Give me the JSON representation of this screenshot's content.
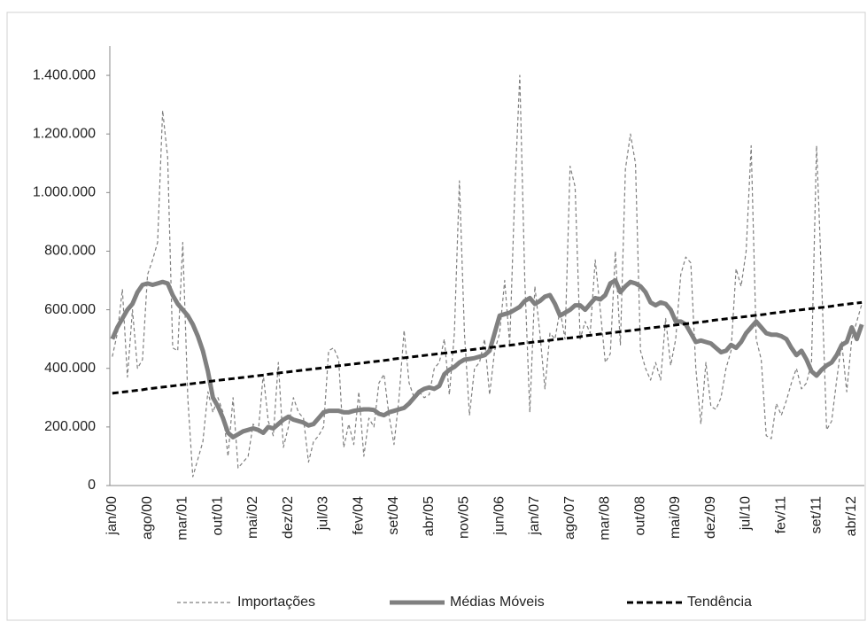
{
  "chart_data": {
    "type": "line",
    "categories": [
      "jan/00",
      null,
      null,
      null,
      null,
      null,
      null,
      "ago/00",
      null,
      null,
      null,
      null,
      null,
      null,
      "mar/01",
      null,
      null,
      null,
      null,
      null,
      null,
      "out/01",
      null,
      null,
      null,
      null,
      null,
      null,
      "mai/02",
      null,
      null,
      null,
      null,
      null,
      null,
      "dez/02",
      null,
      null,
      null,
      null,
      null,
      null,
      "jul/03",
      null,
      null,
      null,
      null,
      null,
      null,
      "fev/04",
      null,
      null,
      null,
      null,
      null,
      null,
      "set/04",
      null,
      null,
      null,
      null,
      null,
      null,
      "abr/05",
      null,
      null,
      null,
      null,
      null,
      null,
      "nov/05",
      null,
      null,
      null,
      null,
      null,
      null,
      "jun/06",
      null,
      null,
      null,
      null,
      null,
      null,
      "jan/07",
      null,
      null,
      null,
      null,
      null,
      null,
      "ago/07",
      null,
      null,
      null,
      null,
      null,
      null,
      "mar/08",
      null,
      null,
      null,
      null,
      null,
      null,
      "out/08",
      null,
      null,
      null,
      null,
      null,
      null,
      "mai/09",
      null,
      null,
      null,
      null,
      null,
      null,
      "dez/09",
      null,
      null,
      null,
      null,
      null,
      null,
      "jul/10",
      null,
      null,
      null,
      null,
      null,
      null,
      "fev/11",
      null,
      null,
      null,
      null,
      null,
      null,
      "set/11",
      null,
      null,
      null,
      null,
      null,
      null,
      "abr/12",
      null,
      null
    ],
    "series": [
      {
        "name": "Importações",
        "color": "#7f7f7f",
        "line_style": "dashed",
        "line_width": 1.2,
        "values": [
          440000,
          520000,
          670000,
          370000,
          600000,
          400000,
          430000,
          720000,
          770000,
          830000,
          1280000,
          1120000,
          470000,
          460000,
          830000,
          300000,
          30000,
          90000,
          150000,
          320000,
          250000,
          300000,
          250000,
          100000,
          300000,
          60000,
          80000,
          100000,
          210000,
          180000,
          380000,
          220000,
          170000,
          420000,
          130000,
          200000,
          300000,
          250000,
          230000,
          80000,
          150000,
          170000,
          200000,
          460000,
          470000,
          430000,
          130000,
          210000,
          140000,
          320000,
          100000,
          230000,
          200000,
          350000,
          380000,
          240000,
          140000,
          300000,
          530000,
          350000,
          300000,
          320000,
          300000,
          310000,
          400000,
          420000,
          500000,
          310000,
          520000,
          1040000,
          520000,
          240000,
          400000,
          420000,
          500000,
          310000,
          460000,
          520000,
          700000,
          480000,
          1000000,
          1400000,
          700000,
          250000,
          680000,
          520000,
          330000,
          520000,
          500000,
          600000,
          500000,
          1090000,
          1020000,
          500000,
          560000,
          520000,
          770000,
          600000,
          420000,
          450000,
          800000,
          480000,
          1080000,
          1200000,
          1100000,
          460000,
          400000,
          360000,
          420000,
          360000,
          570000,
          410000,
          500000,
          720000,
          780000,
          760000,
          400000,
          210000,
          420000,
          270000,
          260000,
          300000,
          400000,
          460000,
          740000,
          680000,
          800000,
          1160000,
          500000,
          430000,
          170000,
          160000,
          280000,
          240000,
          290000,
          350000,
          400000,
          330000,
          350000,
          420000,
          1160000,
          700000,
          190000,
          220000,
          360000,
          490000,
          320000,
          500000,
          560000,
          620000
        ]
      },
      {
        "name": "Médias Móveis",
        "color": "#808080",
        "line_style": "solid",
        "line_width": 5,
        "values": [
          500000,
          540000,
          570000,
          600000,
          620000,
          660000,
          685000,
          690000,
          685000,
          690000,
          695000,
          690000,
          650000,
          620000,
          600000,
          580000,
          550000,
          510000,
          460000,
          390000,
          300000,
          270000,
          230000,
          180000,
          165000,
          175000,
          185000,
          190000,
          195000,
          190000,
          180000,
          200000,
          195000,
          210000,
          225000,
          235000,
          225000,
          220000,
          215000,
          205000,
          210000,
          230000,
          250000,
          255000,
          255000,
          255000,
          250000,
          250000,
          255000,
          258000,
          260000,
          260000,
          258000,
          245000,
          240000,
          250000,
          255000,
          260000,
          265000,
          280000,
          300000,
          320000,
          330000,
          335000,
          330000,
          340000,
          380000,
          395000,
          405000,
          420000,
          430000,
          432000,
          435000,
          440000,
          445000,
          460000,
          520000,
          580000,
          585000,
          590000,
          600000,
          610000,
          630000,
          640000,
          620000,
          630000,
          645000,
          650000,
          620000,
          580000,
          590000,
          600000,
          615000,
          615000,
          600000,
          620000,
          640000,
          635000,
          650000,
          690000,
          700000,
          660000,
          680000,
          695000,
          690000,
          680000,
          660000,
          625000,
          615000,
          625000,
          620000,
          600000,
          560000,
          560000,
          550000,
          520000,
          490000,
          495000,
          490000,
          485000,
          470000,
          455000,
          460000,
          480000,
          470000,
          490000,
          520000,
          540000,
          560000,
          540000,
          520000,
          515000,
          515000,
          510000,
          500000,
          470000,
          445000,
          460000,
          430000,
          390000,
          375000,
          395000,
          410000,
          420000,
          445000,
          480000,
          490000,
          540000,
          500000,
          550000
        ]
      },
      {
        "name": "Tendência",
        "color": "#000000",
        "line_style": "dashed",
        "line_width": 3,
        "values": [
          315000,
          317000,
          319000,
          321000,
          323000,
          325000,
          327000,
          330000,
          332000,
          334000,
          336000,
          338000,
          340000,
          342000,
          344000,
          346000,
          348000,
          350000,
          352000,
          355000,
          357000,
          359000,
          361000,
          363000,
          365000,
          367000,
          369000,
          371000,
          373000,
          375000,
          377000,
          380000,
          382000,
          384000,
          386000,
          388000,
          390000,
          392000,
          394000,
          396000,
          398000,
          400000,
          402000,
          404000,
          407000,
          409000,
          411000,
          413000,
          415000,
          417000,
          419000,
          421000,
          423000,
          425000,
          427000,
          429000,
          432000,
          434000,
          436000,
          438000,
          440000,
          442000,
          444000,
          446000,
          448000,
          450000,
          452000,
          454000,
          456000,
          459000,
          461000,
          463000,
          465000,
          467000,
          469000,
          471000,
          473000,
          475000,
          477000,
          479000,
          481000,
          484000,
          486000,
          488000,
          490000,
          492000,
          494000,
          496000,
          498000,
          500000,
          502000,
          504000,
          506000,
          508000,
          511000,
          513000,
          515000,
          517000,
          519000,
          521000,
          523000,
          525000,
          527000,
          529000,
          531000,
          533000,
          536000,
          538000,
          540000,
          542000,
          544000,
          546000,
          548000,
          550000,
          552000,
          554000,
          556000,
          558000,
          560000,
          563000,
          565000,
          567000,
          569000,
          571000,
          573000,
          575000,
          577000,
          579000,
          581000,
          583000,
          585000,
          588000,
          590000,
          592000,
          594000,
          596000,
          598000,
          600000,
          602000,
          604000,
          606000,
          608000,
          610000,
          612000,
          615000,
          617000,
          619000,
          621000,
          623000,
          625000
        ]
      }
    ],
    "ylim": [
      0,
      1500000
    ],
    "yticks": [
      0,
      {
        "value": 200000,
        "label": "200.000"
      },
      {
        "value": 400000,
        "label": "400.000"
      },
      {
        "value": 600000,
        "label": "600.000"
      },
      {
        "value": 800000,
        "label": "800.000"
      },
      {
        "value": 1000000,
        "label": "1.000.000"
      },
      {
        "value": 1200000,
        "label": "1.200.000"
      },
      {
        "value": 1400000,
        "label": "1.400.000"
      }
    ],
    "grid": false,
    "legend": "bottom"
  }
}
